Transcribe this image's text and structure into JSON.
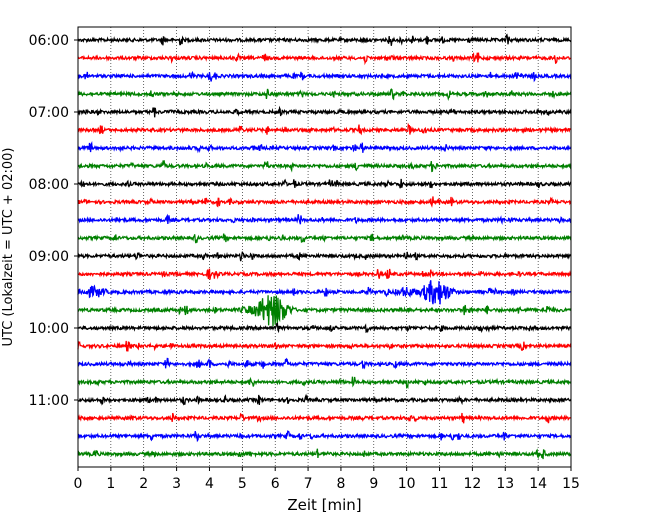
{
  "chart_data": {
    "type": "line",
    "title": "",
    "xlabel": "Zeit  [min]",
    "ylabel": "UTC (Lokalzeit = UTC + 02:00)",
    "xlim": [
      0,
      15
    ],
    "x_ticks": [
      0,
      1,
      2,
      3,
      4,
      5,
      6,
      7,
      8,
      9,
      10,
      11,
      12,
      13,
      14,
      15
    ],
    "y_tick_labels": [
      "06:00",
      "07:00",
      "08:00",
      "09:00",
      "10:00",
      "11:00"
    ],
    "grid": "vertical-dotted",
    "trace_start": "06:00",
    "trace_interval_minutes": 15,
    "trace_colors": [
      "#000000",
      "#ff0000",
      "#0000ff",
      "#008000"
    ],
    "traces": [
      {
        "start": "06:00",
        "color_index": 0
      },
      {
        "start": "06:15",
        "color_index": 1
      },
      {
        "start": "06:30",
        "color_index": 2
      },
      {
        "start": "06:45",
        "color_index": 3
      },
      {
        "start": "07:00",
        "color_index": 0
      },
      {
        "start": "07:15",
        "color_index": 1
      },
      {
        "start": "07:30",
        "color_index": 2
      },
      {
        "start": "07:45",
        "color_index": 3
      },
      {
        "start": "08:00",
        "color_index": 0
      },
      {
        "start": "08:15",
        "color_index": 1
      },
      {
        "start": "08:30",
        "color_index": 2
      },
      {
        "start": "08:45",
        "color_index": 3
      },
      {
        "start": "09:00",
        "color_index": 0
      },
      {
        "start": "09:15",
        "color_index": 1
      },
      {
        "start": "09:30",
        "color_index": 2,
        "events": [
          {
            "t": 0.5,
            "amp": 0.35,
            "width": 0.4
          },
          {
            "t": 10.0,
            "amp": 0.3,
            "width": 0.45
          },
          {
            "t": 10.9,
            "amp": 0.8,
            "width": 0.45
          }
        ]
      },
      {
        "start": "09:45",
        "color_index": 3,
        "events": [
          {
            "t": 5.9,
            "amp": 1.0,
            "width": 0.5
          },
          {
            "t": 5.2,
            "amp": 0.25,
            "width": 0.35
          },
          {
            "t": 14.3,
            "amp": 0.2,
            "width": 0.3
          }
        ]
      },
      {
        "start": "10:00",
        "color_index": 0
      },
      {
        "start": "10:15",
        "color_index": 1
      },
      {
        "start": "10:30",
        "color_index": 2
      },
      {
        "start": "10:45",
        "color_index": 3
      },
      {
        "start": "11:00",
        "color_index": 0
      },
      {
        "start": "11:15",
        "color_index": 1
      },
      {
        "start": "11:30",
        "color_index": 2
      },
      {
        "start": "11:45",
        "color_index": 3
      }
    ]
  }
}
